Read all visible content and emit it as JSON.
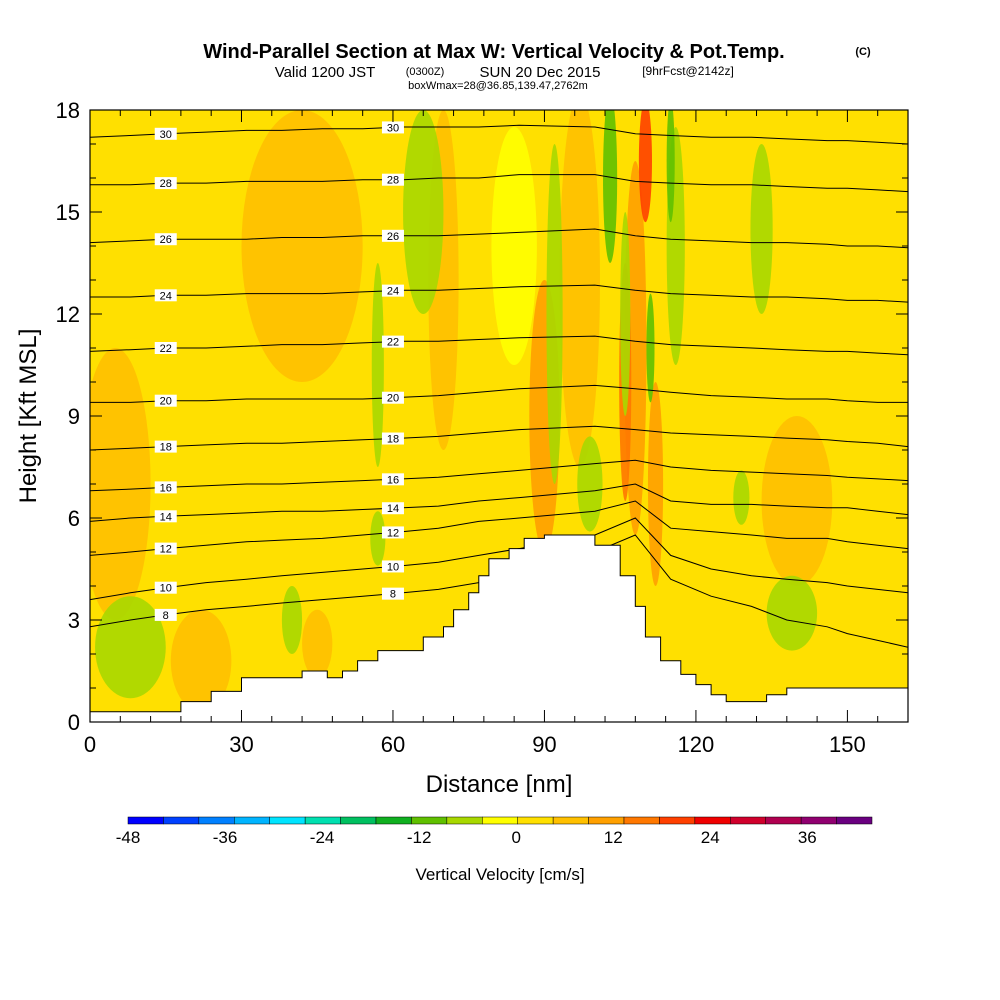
{
  "title": {
    "main": "Wind-Parallel Section at Max W: Vertical Velocity & Pot.Temp.",
    "main_suffix": "(C)",
    "valid": "Valid 1200 JST",
    "utc": "(0300Z)",
    "date": "SUN 20 Dec 2015",
    "fcst": "[9hrFcst@2142z]",
    "box": "boxWmax=28@36.85,139.47,2762m"
  },
  "chart_data": {
    "type": "heatmap",
    "xlabel": "Distance [nm]",
    "ylabel": "Height [Kft MSL]",
    "xlim": [
      0,
      162
    ],
    "ylim": [
      0,
      18
    ],
    "x_ticks": [
      "0",
      "30",
      "60",
      "90",
      "120",
      "150"
    ],
    "y_ticks": [
      "0",
      "3",
      "6",
      "9",
      "12",
      "15",
      "18"
    ],
    "x_tick_values": [
      0,
      30,
      60,
      90,
      120,
      150
    ],
    "y_tick_values": [
      0,
      3,
      6,
      9,
      12,
      15,
      18
    ],
    "colorbar": {
      "label": "Vertical Velocity [cm/s]",
      "tick_labels": [
        "-48",
        "-36",
        "-24",
        "-12",
        "0",
        "12",
        "24",
        "36"
      ],
      "tick_values": [
        -48,
        -36,
        -24,
        -12,
        0,
        12,
        24,
        36
      ],
      "range": [
        -48,
        44
      ],
      "colors": [
        "#0000ff",
        "#0040ff",
        "#0080ff",
        "#00b4ff",
        "#00e4ff",
        "#00e0b0",
        "#00c060",
        "#10b020",
        "#60c000",
        "#a8d800",
        "#ffff00",
        "#ffe000",
        "#ffc000",
        "#ffa000",
        "#ff7800",
        "#ff4000",
        "#f00000",
        "#d0002c",
        "#b00050",
        "#900070",
        "#6a0080"
      ]
    },
    "field_colors": {
      "background": "#ffe000",
      "weak_up": "#ffc000",
      "up": "#ffa000",
      "strong_up": "#ff7800",
      "max_up": "#ff4000",
      "weak_down": "#ffff00",
      "down": "#a8d800",
      "strong_down": "#60c000"
    },
    "theta_contours": [
      {
        "level": 8,
        "heights": [
          2.8,
          3.0,
          3.15,
          3.3,
          3.4,
          3.5,
          3.6,
          3.7,
          3.8,
          3.9,
          4.1,
          4.3,
          5.0,
          5.5,
          4.2,
          3.7,
          3.4,
          3.0,
          2.8,
          2.6,
          2.4,
          2.2
        ]
      },
      {
        "level": 10,
        "heights": [
          3.6,
          3.8,
          3.95,
          4.1,
          4.2,
          4.3,
          4.4,
          4.5,
          4.6,
          4.7,
          4.9,
          5.1,
          5.5,
          6.0,
          4.9,
          4.5,
          4.3,
          4.2,
          4.1,
          4.0,
          3.9,
          3.8
        ]
      },
      {
        "level": 12,
        "heights": [
          4.9,
          5.0,
          5.1,
          5.2,
          5.3,
          5.35,
          5.4,
          5.5,
          5.6,
          5.7,
          5.9,
          6.0,
          6.2,
          6.5,
          5.7,
          5.6,
          5.5,
          5.4,
          5.4,
          5.3,
          5.2,
          5.1
        ]
      },
      {
        "level": 14,
        "heights": [
          5.9,
          6.0,
          6.05,
          6.1,
          6.15,
          6.2,
          6.2,
          6.25,
          6.3,
          6.35,
          6.5,
          6.6,
          6.8,
          7.0,
          6.5,
          6.4,
          6.4,
          6.35,
          6.3,
          6.3,
          6.2,
          6.1
        ]
      },
      {
        "level": 16,
        "heights": [
          6.8,
          6.85,
          6.9,
          6.95,
          7.0,
          7.0,
          7.05,
          7.1,
          7.15,
          7.2,
          7.3,
          7.4,
          7.6,
          7.7,
          7.5,
          7.4,
          7.35,
          7.3,
          7.25,
          7.2,
          7.15,
          7.1
        ]
      },
      {
        "level": 18,
        "heights": [
          8.0,
          8.05,
          8.1,
          8.15,
          8.2,
          8.2,
          8.25,
          8.3,
          8.35,
          8.4,
          8.5,
          8.6,
          8.7,
          8.6,
          8.5,
          8.45,
          8.4,
          8.35,
          8.3,
          8.25,
          8.2,
          8.1
        ]
      },
      {
        "level": 20,
        "heights": [
          9.4,
          9.4,
          9.45,
          9.45,
          9.5,
          9.5,
          9.5,
          9.5,
          9.55,
          9.6,
          9.7,
          9.8,
          9.9,
          9.8,
          9.7,
          9.6,
          9.55,
          9.5,
          9.5,
          9.45,
          9.4,
          9.4
        ]
      },
      {
        "level": 22,
        "heights": [
          10.9,
          10.95,
          11.0,
          11.0,
          11.05,
          11.1,
          11.1,
          11.15,
          11.2,
          11.2,
          11.25,
          11.3,
          11.35,
          11.2,
          11.1,
          11.05,
          11.0,
          10.95,
          10.9,
          10.9,
          10.85,
          10.8
        ]
      },
      {
        "level": 24,
        "heights": [
          12.5,
          12.5,
          12.55,
          12.55,
          12.6,
          12.6,
          12.6,
          12.65,
          12.7,
          12.7,
          12.75,
          12.8,
          12.85,
          12.7,
          12.6,
          12.55,
          12.5,
          12.5,
          12.45,
          12.4,
          12.4,
          12.35
        ]
      },
      {
        "level": 26,
        "heights": [
          14.1,
          14.15,
          14.2,
          14.2,
          14.2,
          14.25,
          14.25,
          14.3,
          14.3,
          14.3,
          14.35,
          14.4,
          14.5,
          14.3,
          14.2,
          14.15,
          14.1,
          14.1,
          14.05,
          14.0,
          14.0,
          13.95
        ]
      },
      {
        "level": 28,
        "heights": [
          15.8,
          15.8,
          15.85,
          15.85,
          15.9,
          15.9,
          15.9,
          15.95,
          15.95,
          16.0,
          16.0,
          16.1,
          16.1,
          15.9,
          15.85,
          15.8,
          15.8,
          15.75,
          15.7,
          15.7,
          15.65,
          15.6
        ]
      },
      {
        "level": 30,
        "heights": [
          17.2,
          17.25,
          17.3,
          17.35,
          17.4,
          17.4,
          17.45,
          17.45,
          17.5,
          17.5,
          17.5,
          17.55,
          17.5,
          17.3,
          17.25,
          17.2,
          17.2,
          17.15,
          17.1,
          17.1,
          17.05,
          17.0
        ]
      }
    ],
    "contour_x": [
      0,
      8,
      15,
      23,
      31,
      38,
      46,
      54,
      62,
      69,
      77,
      85,
      100,
      108,
      115,
      123,
      131,
      138,
      146,
      150,
      156,
      162
    ],
    "terrain": {
      "x": [
        0,
        18,
        18,
        24,
        24,
        30,
        30,
        36,
        36,
        42,
        42,
        47,
        47,
        50,
        50,
        53,
        53,
        57,
        57,
        66,
        66,
        70,
        70,
        72,
        72,
        75,
        75,
        77,
        77,
        79,
        79,
        83,
        83,
        86,
        86,
        88,
        88,
        90,
        90,
        93,
        93,
        95,
        95,
        100,
        100,
        105,
        105,
        108,
        108,
        110,
        110,
        113,
        113,
        117,
        117,
        120,
        120,
        123,
        123,
        126,
        126,
        134,
        134,
        138,
        138,
        162
      ],
      "y": [
        0.3,
        0.3,
        0.6,
        0.6,
        0.9,
        0.9,
        1.3,
        1.3,
        1.3,
        1.3,
        1.5,
        1.5,
        1.3,
        1.3,
        1.5,
        1.5,
        1.8,
        1.8,
        2.1,
        2.1,
        2.5,
        2.5,
        2.8,
        2.8,
        3.3,
        3.3,
        3.8,
        3.8,
        4.3,
        4.3,
        4.8,
        4.8,
        5.1,
        5.1,
        5.4,
        5.4,
        5.4,
        5.4,
        5.5,
        5.5,
        5.5,
        5.5,
        5.5,
        5.5,
        5.2,
        5.2,
        4.3,
        4.3,
        3.4,
        3.4,
        2.5,
        2.5,
        1.8,
        1.8,
        1.4,
        1.4,
        1.1,
        1.1,
        0.8,
        0.8,
        0.6,
        0.6,
        0.8,
        0.8,
        1.0,
        1.0
      ]
    }
  }
}
